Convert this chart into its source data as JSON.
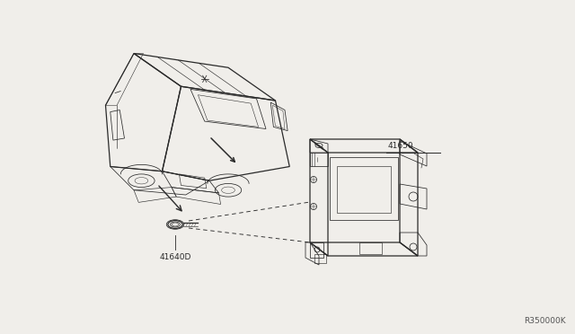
{
  "background_color": "#f0eeea",
  "line_color": "#2a2a2a",
  "label_41650": "41650",
  "label_41640D": "41640D",
  "ref_code": "R350000K",
  "figsize": [
    6.4,
    3.72
  ],
  "dpi": 100
}
